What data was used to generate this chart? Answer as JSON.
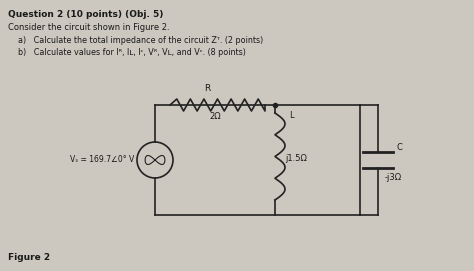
{
  "title_line1": "Question 2 (10 points) (Obj. 5)",
  "title_line2": "Consider the circuit shown in Figure 2.",
  "bullet_a": "a)   Calculate the total impedance of the circuit Zᵀ. (2 points)",
  "bullet_b": "b)   Calculate values for Iᴿ, Iʟ, Iᶜ, Vᴿ, Vʟ, and Vᶜ. (8 points)",
  "vs_label": "Vₛ = 169.7∠0° V",
  "R_label": "R",
  "R_val": "2Ω",
  "L_label": "L",
  "L_val": "j1.5Ω",
  "C_label": "C",
  "C_val": "-j3Ω",
  "figure_label": "Figure 2",
  "bg_color": "#ccc8c0",
  "text_color": "#1a1a1a",
  "circuit_color": "#222222"
}
